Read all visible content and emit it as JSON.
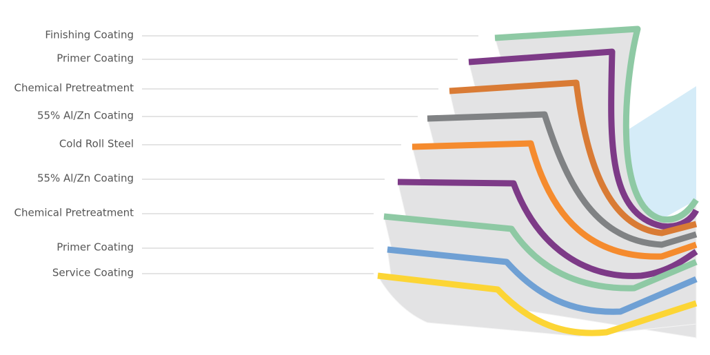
{
  "layers": [
    {
      "label": "Finishing Coating"
    },
    {
      "label": "Primer Coating"
    },
    {
      "label": "Chemical Pretreatment"
    },
    {
      "label": "55% Al/Zn Coating"
    },
    {
      "label": "Cold Roll Steel"
    },
    {
      "label": "55% Al/Zn Coating"
    },
    {
      "label": "Chemical Pretreatment"
    },
    {
      "label": "Primer Coating"
    },
    {
      "label": "Service Coating"
    }
  ]
}
